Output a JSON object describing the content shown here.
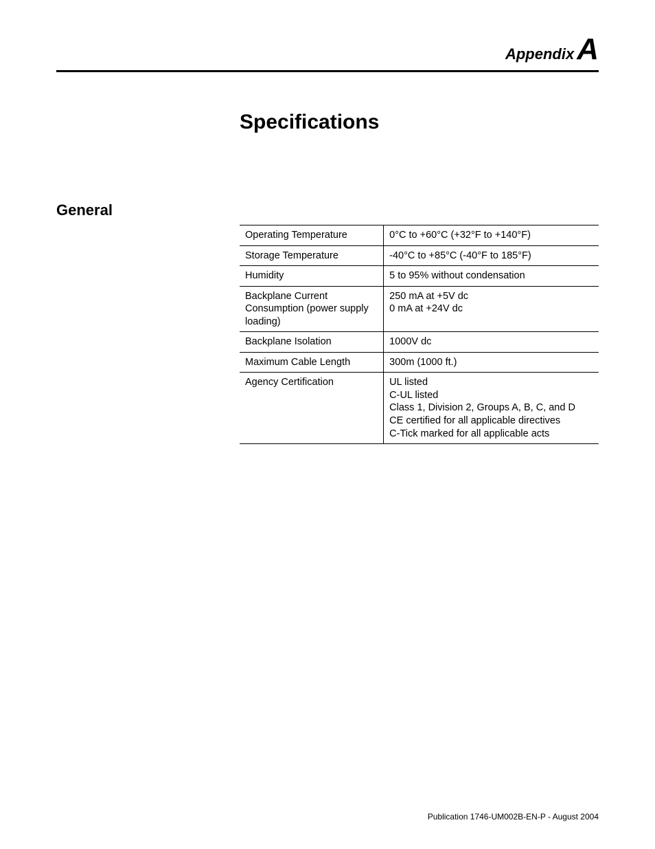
{
  "header": {
    "appendix_word": "Appendix",
    "appendix_letter": "A"
  },
  "title": "Specifications",
  "section_label": "General",
  "table": {
    "rows": [
      {
        "label": "Operating Temperature",
        "value": "0°C to +60°C (+32°F to +140°F)"
      },
      {
        "label": "Storage Temperature",
        "value": "-40°C to +85°C (-40°F to 185°F)"
      },
      {
        "label": "Humidity",
        "value": "5 to 95% without condensation"
      },
      {
        "label": "Backplane Current Consumption (power supply loading)",
        "value": "250 mA at +5V dc\n0 mA at +24V dc"
      },
      {
        "label": "Backplane Isolation",
        "value": "1000V dc"
      },
      {
        "label": "Maximum Cable Length",
        "value": "300m (1000 ft.)"
      },
      {
        "label": "Agency Certification",
        "value": "UL listed\nC-UL listed\nClass 1, Division 2, Groups A, B, C, and D\nCE certified for all applicable directives\nC-Tick marked for all applicable acts"
      }
    ]
  },
  "footer": "Publication 1746-UM002B-EN-P - August 2004"
}
